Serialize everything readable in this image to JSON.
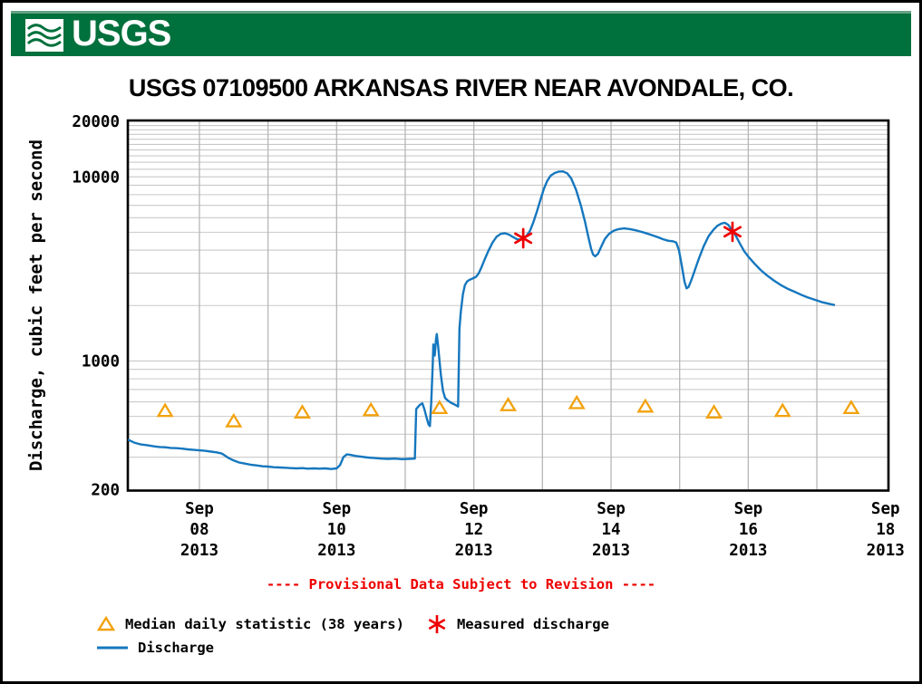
{
  "header": {
    "brand": "USGS"
  },
  "title": "USGS 07109500 ARKANSAS RIVER NEAR AVONDALE, CO.",
  "provisional_notice": "---- Provisional Data Subject to Revision ----",
  "legend": {
    "median_label": "Median daily statistic (38 years)",
    "measured_label": "Measured discharge",
    "discharge_label": "Discharge"
  },
  "colors": {
    "green": "#00703C",
    "green_light": "#64A283",
    "blue": "#1577BE",
    "orange": "#F2A20D",
    "red": "#EE0000",
    "grid_h": "#C9C9C9",
    "grid_v": "#B6B6B6"
  },
  "chart_data": {
    "type": "line",
    "title": "USGS 07109500 ARKANSAS RIVER NEAR AVONDALE, CO.",
    "ylabel": "Discharge, cubic feet per second",
    "xlabel": "",
    "y_scale": "log",
    "ylim": [
      200,
      20000
    ],
    "grid": true,
    "legend_position": "bottom",
    "y_ticks": [
      {
        "value": 20000,
        "label": "20000"
      },
      {
        "value": 10000,
        "label": "10000"
      },
      {
        "value": 1000,
        "label": "1000"
      },
      {
        "value": 200,
        "label": "200"
      }
    ],
    "x_unit": "day of September 2013",
    "xlim": [
      6.97,
      18.03
    ],
    "x_gridline_days": [
      8,
      9,
      10,
      11,
      12,
      13,
      14,
      15,
      16,
      17
    ],
    "x_ticks": [
      {
        "day": 8,
        "lines": [
          "Sep",
          "08",
          "2013"
        ]
      },
      {
        "day": 10,
        "lines": [
          "Sep",
          "10",
          "2013"
        ]
      },
      {
        "day": 12,
        "lines": [
          "Sep",
          "12",
          "2013"
        ]
      },
      {
        "day": 14,
        "lines": [
          "Sep",
          "14",
          "2013"
        ]
      },
      {
        "day": 16,
        "lines": [
          "Sep",
          "16",
          "2013"
        ]
      },
      {
        "day": 18,
        "lines": [
          "Sep",
          "18",
          "2013"
        ]
      }
    ],
    "series": [
      {
        "name": "Discharge",
        "marker": "line",
        "color": "blue",
        "points": [
          [
            6.97,
            372
          ],
          [
            7.05,
            360
          ],
          [
            7.15,
            352
          ],
          [
            7.25,
            348
          ],
          [
            7.33,
            344
          ],
          [
            7.42,
            341
          ],
          [
            7.5,
            340
          ],
          [
            7.58,
            337
          ],
          [
            7.67,
            336
          ],
          [
            7.75,
            334
          ],
          [
            7.83,
            331
          ],
          [
            7.92,
            329
          ],
          [
            8.0,
            327
          ],
          [
            8.08,
            325
          ],
          [
            8.17,
            322
          ],
          [
            8.25,
            319
          ],
          [
            8.33,
            314
          ],
          [
            8.42,
            298
          ],
          [
            8.5,
            288
          ],
          [
            8.58,
            281
          ],
          [
            8.67,
            277
          ],
          [
            8.75,
            273
          ],
          [
            8.83,
            271
          ],
          [
            8.92,
            268
          ],
          [
            9.0,
            267
          ],
          [
            9.08,
            265
          ],
          [
            9.17,
            264
          ],
          [
            9.25,
            263
          ],
          [
            9.33,
            262
          ],
          [
            9.42,
            261
          ],
          [
            9.5,
            262
          ],
          [
            9.58,
            260
          ],
          [
            9.67,
            261
          ],
          [
            9.75,
            260
          ],
          [
            9.83,
            261
          ],
          [
            9.92,
            259
          ],
          [
            10.0,
            261
          ],
          [
            10.05,
            272
          ],
          [
            10.1,
            301
          ],
          [
            10.15,
            311
          ],
          [
            10.2,
            309
          ],
          [
            10.28,
            305
          ],
          [
            10.36,
            302
          ],
          [
            10.45,
            299
          ],
          [
            10.55,
            297
          ],
          [
            10.65,
            295
          ],
          [
            10.75,
            294
          ],
          [
            10.85,
            295
          ],
          [
            10.95,
            293
          ],
          [
            11.05,
            294
          ],
          [
            11.14,
            295
          ],
          [
            11.16,
            548
          ],
          [
            11.19,
            565
          ],
          [
            11.22,
            580
          ],
          [
            11.25,
            589
          ],
          [
            11.28,
            545
          ],
          [
            11.31,
            495
          ],
          [
            11.34,
            452
          ],
          [
            11.36,
            443
          ],
          [
            11.38,
            600
          ],
          [
            11.4,
            950
          ],
          [
            11.41,
            1230
          ],
          [
            11.43,
            1070
          ],
          [
            11.45,
            1320
          ],
          [
            11.46,
            1400
          ],
          [
            11.48,
            1200
          ],
          [
            11.5,
            1000
          ],
          [
            11.52,
            840
          ],
          [
            11.55,
            690
          ],
          [
            11.58,
            630
          ],
          [
            11.62,
            610
          ],
          [
            11.67,
            592
          ],
          [
            11.72,
            580
          ],
          [
            11.77,
            566
          ],
          [
            11.79,
            1500
          ],
          [
            11.81,
            1850
          ],
          [
            11.84,
            2300
          ],
          [
            11.87,
            2580
          ],
          [
            11.9,
            2700
          ],
          [
            11.94,
            2760
          ],
          [
            11.98,
            2800
          ],
          [
            12.03,
            2860
          ],
          [
            12.07,
            2990
          ],
          [
            12.11,
            3220
          ],
          [
            12.16,
            3580
          ],
          [
            12.21,
            3950
          ],
          [
            12.27,
            4380
          ],
          [
            12.33,
            4720
          ],
          [
            12.39,
            4900
          ],
          [
            12.45,
            4940
          ],
          [
            12.51,
            4860
          ],
          [
            12.57,
            4710
          ],
          [
            12.63,
            4580
          ],
          [
            12.68,
            4560
          ],
          [
            12.72,
            4640
          ],
          [
            12.77,
            4790
          ],
          [
            12.82,
            5100
          ],
          [
            12.87,
            5700
          ],
          [
            12.92,
            6500
          ],
          [
            12.97,
            7500
          ],
          [
            13.02,
            8600
          ],
          [
            13.07,
            9500
          ],
          [
            13.12,
            10150
          ],
          [
            13.18,
            10500
          ],
          [
            13.24,
            10680
          ],
          [
            13.3,
            10700
          ],
          [
            13.36,
            10450
          ],
          [
            13.42,
            9800
          ],
          [
            13.49,
            8500
          ],
          [
            13.56,
            7000
          ],
          [
            13.62,
            5700
          ],
          [
            13.67,
            4700
          ],
          [
            13.71,
            4050
          ],
          [
            13.74,
            3780
          ],
          [
            13.77,
            3700
          ],
          [
            13.81,
            3820
          ],
          [
            13.86,
            4200
          ],
          [
            13.91,
            4600
          ],
          [
            13.97,
            4900
          ],
          [
            14.04,
            5100
          ],
          [
            14.11,
            5200
          ],
          [
            14.19,
            5250
          ],
          [
            14.28,
            5200
          ],
          [
            14.38,
            5100
          ],
          [
            14.48,
            4980
          ],
          [
            14.58,
            4850
          ],
          [
            14.68,
            4700
          ],
          [
            14.76,
            4580
          ],
          [
            14.83,
            4500
          ],
          [
            14.9,
            4470
          ],
          [
            14.95,
            4400
          ],
          [
            14.99,
            4000
          ],
          [
            15.03,
            3300
          ],
          [
            15.07,
            2700
          ],
          [
            15.1,
            2480
          ],
          [
            15.13,
            2520
          ],
          [
            15.17,
            2750
          ],
          [
            15.22,
            3100
          ],
          [
            15.28,
            3600
          ],
          [
            15.35,
            4200
          ],
          [
            15.42,
            4750
          ],
          [
            15.49,
            5150
          ],
          [
            15.55,
            5420
          ],
          [
            15.61,
            5580
          ],
          [
            15.66,
            5630
          ],
          [
            15.71,
            5480
          ],
          [
            15.76,
            5150
          ],
          [
            15.81,
            4850
          ],
          [
            15.87,
            4400
          ],
          [
            15.94,
            3950
          ],
          [
            16.01,
            3650
          ],
          [
            16.09,
            3380
          ],
          [
            16.18,
            3120
          ],
          [
            16.27,
            2920
          ],
          [
            16.37,
            2740
          ],
          [
            16.47,
            2590
          ],
          [
            16.57,
            2470
          ],
          [
            16.67,
            2380
          ],
          [
            16.77,
            2290
          ],
          [
            16.87,
            2210
          ],
          [
            16.97,
            2150
          ],
          [
            17.07,
            2090
          ],
          [
            17.16,
            2050
          ],
          [
            17.25,
            2015
          ]
        ]
      },
      {
        "name": "Median daily statistic (38 years)",
        "marker": "triangle",
        "color": "orange",
        "points": [
          [
            7.5,
            535
          ],
          [
            8.5,
            470
          ],
          [
            9.5,
            525
          ],
          [
            10.5,
            540
          ],
          [
            11.5,
            555
          ],
          [
            12.5,
            575
          ],
          [
            13.5,
            590
          ],
          [
            14.5,
            565
          ],
          [
            15.5,
            525
          ],
          [
            16.5,
            535
          ],
          [
            17.5,
            555
          ]
        ]
      },
      {
        "name": "Measured discharge",
        "marker": "asterisk",
        "color": "red",
        "points": [
          [
            12.72,
            4640
          ],
          [
            15.77,
            5030
          ]
        ]
      }
    ]
  }
}
